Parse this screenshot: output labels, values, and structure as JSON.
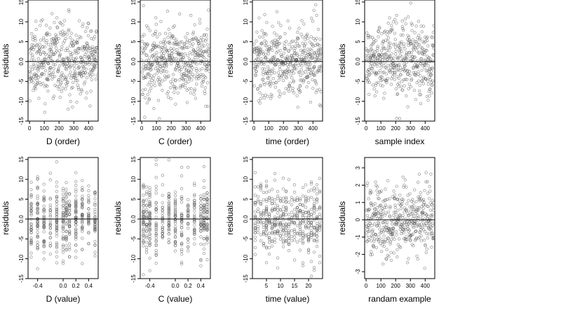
{
  "figure": {
    "background": "#ffffff",
    "point_color": "#555555",
    "line_color": "#000000"
  },
  "chart_data": [
    {
      "type": "scatter",
      "xlabel": "D (order)",
      "ylabel": "residuals",
      "xlim": [
        -10,
        465
      ],
      "ylim": [
        -15,
        15.5
      ],
      "xticks": [
        0,
        100,
        200,
        300,
        400
      ],
      "yticks": [
        -15,
        -10,
        -5,
        0,
        5,
        10,
        15
      ],
      "ytick_labels": [
        "-15",
        "-10",
        "-5",
        "0.0",
        "5",
        "10",
        "15"
      ],
      "hline": 0,
      "gen": {
        "kind": "index",
        "n": 460,
        "sd": 4.5,
        "seed": 11
      }
    },
    {
      "type": "scatter",
      "xlabel": "C (order)",
      "ylabel": "residuals",
      "xlim": [
        -10,
        465
      ],
      "ylim": [
        -15,
        15.5
      ],
      "xticks": [
        0,
        100,
        200,
        300,
        400
      ],
      "yticks": [
        -15,
        -10,
        -5,
        0,
        5,
        10,
        15
      ],
      "ytick_labels": [
        "-15",
        "-10",
        "-5",
        "0.0",
        "5",
        "10",
        "15"
      ],
      "hline": 0,
      "gen": {
        "kind": "index",
        "n": 460,
        "sd": 4.5,
        "seed": 22
      }
    },
    {
      "type": "scatter",
      "xlabel": "time (order)",
      "ylabel": "residuals",
      "xlim": [
        -10,
        465
      ],
      "ylim": [
        -15,
        15.5
      ],
      "xticks": [
        0,
        100,
        200,
        300,
        400
      ],
      "yticks": [
        -15,
        -10,
        -5,
        0,
        5,
        10,
        15
      ],
      "ytick_labels": [
        "-15",
        "-10",
        "-5",
        "0.0",
        "5",
        "10",
        "15"
      ],
      "hline": 0,
      "gen": {
        "kind": "index",
        "n": 460,
        "sd": 4.5,
        "seed": 33
      }
    },
    {
      "type": "scatter",
      "xlabel": "sample index",
      "ylabel": "residuals",
      "xlim": [
        -10,
        465
      ],
      "ylim": [
        -15,
        15.5
      ],
      "xticks": [
        0,
        100,
        200,
        300,
        400
      ],
      "yticks": [
        -15,
        -10,
        -5,
        0,
        5,
        10,
        15
      ],
      "ytick_labels": [
        "-15",
        "-10",
        "-5",
        "0.0",
        "5",
        "10",
        "15"
      ],
      "hline": 0,
      "gen": {
        "kind": "index",
        "n": 460,
        "sd": 4.5,
        "seed": 44
      }
    },
    {
      "type": "scatter",
      "xlabel": "D (value)",
      "ylabel": "residuals",
      "xlim": [
        -0.55,
        0.55
      ],
      "ylim": [
        -15,
        15.5
      ],
      "xticks": [
        -0.4,
        0.0,
        0.2,
        0.4
      ],
      "xtick_labels": [
        "-0.4",
        "0.0",
        "0.2",
        "0.4"
      ],
      "yticks": [
        -15,
        -10,
        -5,
        0,
        5,
        10,
        15
      ],
      "ytick_labels": [
        "-15",
        "-10",
        "-5",
        "0.0",
        "5",
        "10",
        "15"
      ],
      "hline": 0,
      "gen": {
        "kind": "levels",
        "n": 460,
        "sd": 4.5,
        "seed": 55,
        "levels": [
          -0.5,
          -0.4,
          -0.3,
          -0.2,
          -0.1,
          0.0,
          0.05,
          0.1,
          0.2,
          0.3,
          0.4,
          0.5
        ]
      }
    },
    {
      "type": "scatter",
      "xlabel": "C (value)",
      "ylabel": "residuals",
      "xlim": [
        -0.55,
        0.55
      ],
      "ylim": [
        -15,
        15.5
      ],
      "xticks": [
        -0.4,
        0.0,
        0.2,
        0.4
      ],
      "xtick_labels": [
        "-0.4",
        "0.0",
        "0.2",
        "0.4"
      ],
      "yticks": [
        -15,
        -10,
        -5,
        0,
        5,
        10,
        15
      ],
      "ytick_labels": [
        "-15",
        "-10",
        "-5",
        "0.0",
        "5",
        "10",
        "15"
      ],
      "hline": 0,
      "gen": {
        "kind": "levels",
        "n": 460,
        "sd": 4.5,
        "seed": 66,
        "levels": [
          -0.5,
          -0.45,
          -0.4,
          -0.3,
          -0.2,
          -0.1,
          0.0,
          0.1,
          0.2,
          0.3,
          0.4,
          0.45,
          0.5
        ]
      }
    },
    {
      "type": "scatter",
      "xlabel": "time (value)",
      "ylabel": "residuals",
      "xlim": [
        0,
        25
      ],
      "ylim": [
        -15,
        15.5
      ],
      "xticks": [
        5,
        10,
        15,
        20
      ],
      "yticks": [
        -15,
        -10,
        -5,
        0,
        5,
        10,
        15
      ],
      "ytick_labels": [
        "-15",
        "-10",
        "-5",
        "0.0",
        "5",
        "10",
        "15"
      ],
      "hline": 0,
      "gen": {
        "kind": "levels",
        "n": 460,
        "sd": 4.5,
        "seed": 77,
        "levels": [
          1,
          2,
          3,
          4,
          5,
          6,
          7,
          8,
          9,
          10,
          11,
          12,
          13,
          14,
          15,
          16,
          17,
          18,
          19,
          20,
          21,
          22,
          23,
          24
        ]
      }
    },
    {
      "type": "scatter",
      "xlabel": "randam example",
      "ylabel": "residuals",
      "xlim": [
        -10,
        465
      ],
      "ylim": [
        -3.4,
        3.6
      ],
      "xticks": [
        0,
        100,
        200,
        300,
        400
      ],
      "yticks": [
        -3,
        -2,
        -1,
        0,
        1,
        2,
        3
      ],
      "hline": 0,
      "gen": {
        "kind": "index",
        "n": 460,
        "sd": 1.0,
        "seed": 88
      }
    }
  ]
}
